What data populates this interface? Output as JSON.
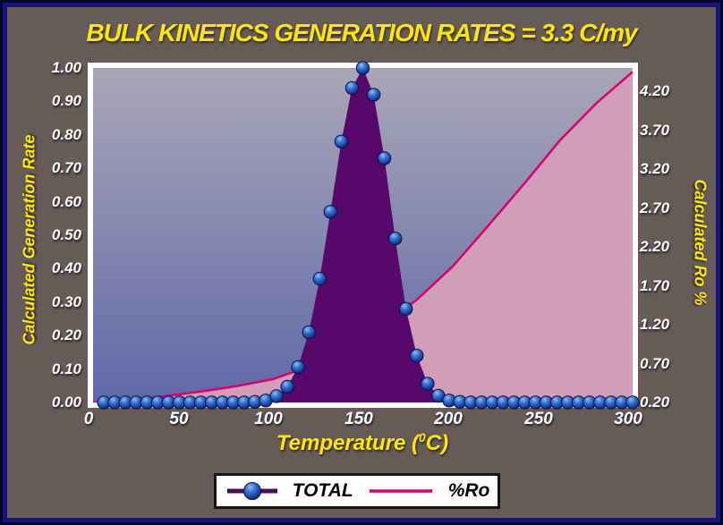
{
  "chart_data": {
    "type": "line",
    "title": "BULK KINETICS GENERATION RATES = 3.3 C/my",
    "grid": false,
    "plot_background": {
      "gradient_top": "#aba7b8",
      "gradient_bottom": "#5f68a8",
      "frame_color": "#ffffff"
    },
    "x_axis": {
      "label_prefix": "Temperature (",
      "label_sup": "0",
      "label_suffix": "C)",
      "ticks": [
        "0",
        "50",
        "100",
        "150",
        "200",
        "250",
        "300"
      ],
      "range": [
        0,
        300
      ]
    },
    "y_left": {
      "title": "Calculated Generation Rate",
      "ticks": [
        "1.00",
        "0.90",
        "0.80",
        "0.70",
        "0.60",
        "0.50",
        "0.40",
        "0.30",
        "0.20",
        "0.10",
        "0.00"
      ],
      "range": [
        0,
        1
      ]
    },
    "y_right": {
      "title": "Calculated Ro %",
      "ticks": [
        "4.20",
        "3.70",
        "3.20",
        "2.70",
        "2.20",
        "1.70",
        "1.20",
        "0.70",
        "0.20"
      ],
      "range": [
        0.2,
        4.5
      ]
    },
    "series": [
      {
        "name": "TOTAL",
        "axis": "left",
        "style": "filled-area-with-sphere-markers",
        "fill": "#56096a",
        "marker": "blue-sphere",
        "marker_stroke": "#0b1545",
        "x": [
          6,
          12,
          18,
          24,
          30,
          36,
          42,
          48,
          54,
          60,
          66,
          72,
          78,
          84,
          90,
          96,
          102,
          108,
          114,
          120,
          126,
          132,
          138,
          144,
          150,
          156,
          162,
          168,
          174,
          180,
          186,
          192,
          198,
          204,
          210,
          216,
          222,
          228,
          234,
          240,
          246,
          252,
          258,
          264,
          270,
          276,
          282,
          288,
          294,
          300
        ],
        "values": [
          0,
          0,
          0,
          0,
          0,
          0,
          0,
          0,
          0,
          0,
          0,
          0,
          0,
          0,
          0.002,
          0.006,
          0.019,
          0.047,
          0.106,
          0.21,
          0.37,
          0.57,
          0.78,
          0.94,
          1.0,
          0.92,
          0.73,
          0.49,
          0.28,
          0.14,
          0.056,
          0.02,
          0.006,
          0.002,
          0,
          0,
          0,
          0,
          0,
          0,
          0,
          0,
          0,
          0,
          0,
          0,
          0,
          0,
          0,
          0
        ]
      },
      {
        "name": "%Ro",
        "axis": "right",
        "style": "line-with-area-fill",
        "line_color": "#d4026e",
        "fill": "#d29db9",
        "x": [
          0,
          20,
          40,
          60,
          80,
          100,
          120,
          140,
          160,
          180,
          200,
          220,
          240,
          260,
          280,
          300
        ],
        "values": [
          0.2,
          0.23,
          0.28,
          0.34,
          0.41,
          0.5,
          0.66,
          0.9,
          1.18,
          1.52,
          1.95,
          2.48,
          3.02,
          3.58,
          4.05,
          4.45
        ]
      }
    ],
    "legend": {
      "position": "bottom",
      "entries": [
        {
          "label": "TOTAL",
          "marker": "purple-line-with-blue-sphere"
        },
        {
          "label": "%Ro",
          "marker": "magenta-line"
        }
      ]
    }
  }
}
